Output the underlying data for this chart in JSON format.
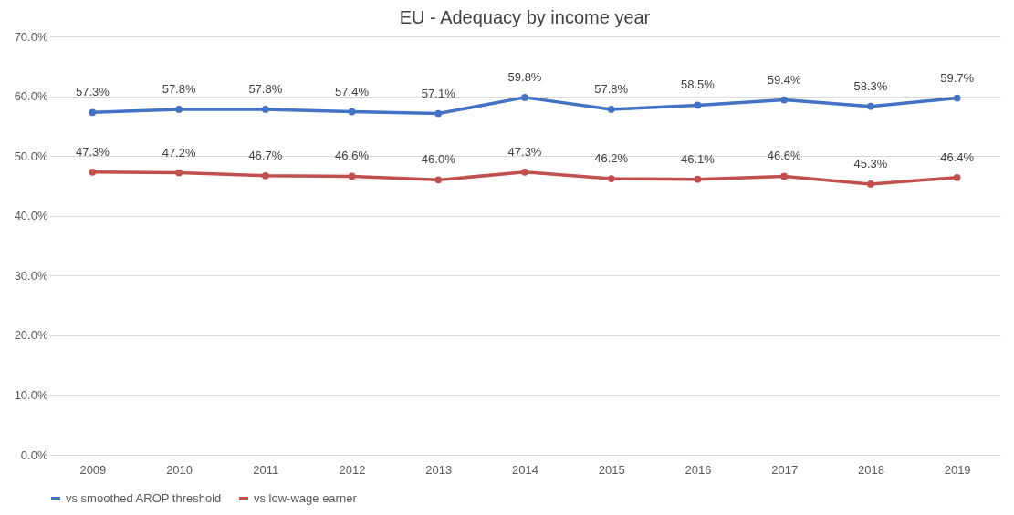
{
  "chart_data": {
    "type": "line",
    "title": "EU - Adequacy by income year",
    "categories": [
      "2009",
      "2010",
      "2011",
      "2012",
      "2013",
      "2014",
      "2015",
      "2016",
      "2017",
      "2018",
      "2019"
    ],
    "series": [
      {
        "name": "vs smoothed AROP threshold",
        "color": "#4472c4",
        "values": [
          57.3,
          57.8,
          57.8,
          57.4,
          57.1,
          59.8,
          57.8,
          58.5,
          59.4,
          58.3,
          59.7
        ],
        "value_labels": [
          "57.3%",
          "57.8%",
          "57.8%",
          "57.4%",
          "57.1%",
          "59.8%",
          "57.8%",
          "58.5%",
          "59.4%",
          "58.3%",
          "59.7%"
        ]
      },
      {
        "name": "vs low-wage earner",
        "color": "#c0504d",
        "values": [
          47.3,
          47.2,
          46.7,
          46.6,
          46.0,
          47.3,
          46.2,
          46.1,
          46.6,
          45.3,
          46.4
        ],
        "value_labels": [
          "47.3%",
          "47.2%",
          "46.7%",
          "46.6%",
          "46.0%",
          "47.3%",
          "46.2%",
          "46.1%",
          "46.6%",
          "45.3%",
          "46.4%"
        ]
      }
    ],
    "ylim": [
      0,
      70
    ],
    "yticks": [
      {
        "value": 0,
        "label": "0.0%"
      },
      {
        "value": 10,
        "label": "10.0%"
      },
      {
        "value": 20,
        "label": "20.0%"
      },
      {
        "value": 30,
        "label": "30.0%"
      },
      {
        "value": 40,
        "label": "40.0%"
      },
      {
        "value": 50,
        "label": "50.0%"
      },
      {
        "value": 60,
        "label": "60.0%"
      },
      {
        "value": 70,
        "label": "70.0%"
      }
    ],
    "grid": "y",
    "legend": "bottom",
    "marker": "circle",
    "line_style": "solid"
  }
}
